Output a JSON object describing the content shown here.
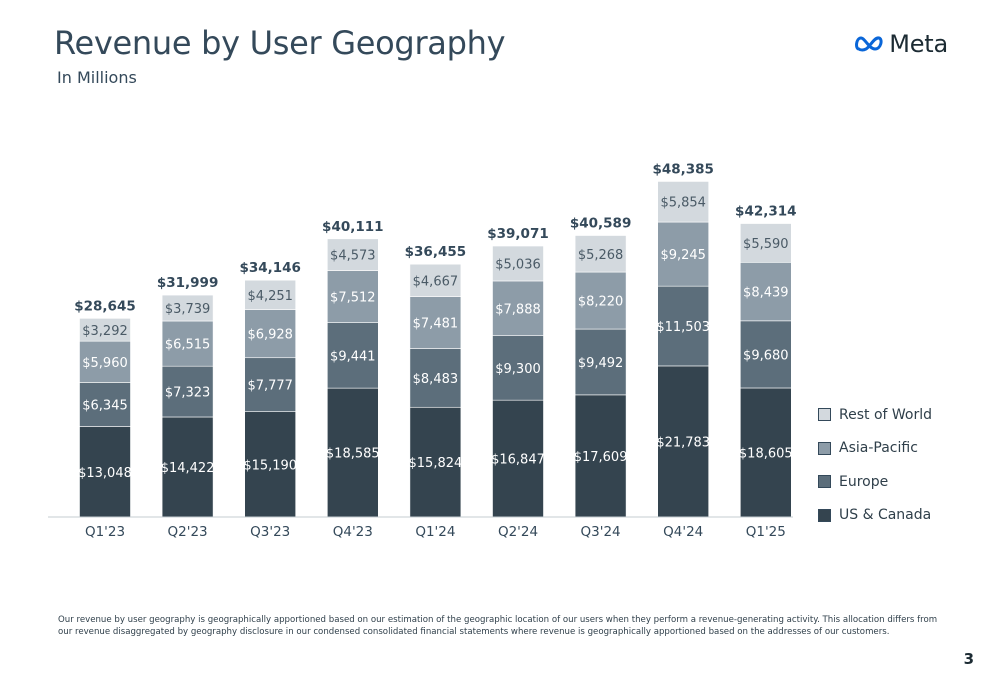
{
  "header": {
    "title": "Revenue by User Geography",
    "subtitle": "In Millions",
    "logo_text": "Meta"
  },
  "chart_data": {
    "type": "bar",
    "stacked": true,
    "title": "Revenue by User Geography",
    "subtitle": "In Millions",
    "categories": [
      "Q1'23",
      "Q2'23",
      "Q3'23",
      "Q4'23",
      "Q1'24",
      "Q2'24",
      "Q3'24",
      "Q4'24",
      "Q1'25"
    ],
    "series": [
      {
        "name": "US & Canada",
        "color": "#34444f",
        "label_color": "#ffffff",
        "values": [
          13048,
          14422,
          15190,
          18585,
          15824,
          16847,
          17609,
          21783,
          18605
        ]
      },
      {
        "name": "Europe",
        "color": "#5c6e7b",
        "label_color": "#ffffff",
        "values": [
          6345,
          7323,
          7777,
          9441,
          8483,
          9300,
          9492,
          11503,
          9680
        ]
      },
      {
        "name": "Asia-Pacific",
        "color": "#8d9ca8",
        "label_color": "#ffffff",
        "values": [
          5960,
          6515,
          6928,
          7512,
          7481,
          7888,
          8220,
          9245,
          8439
        ]
      },
      {
        "name": "Rest of World",
        "color": "#d3d9de",
        "label_color": "#4a5a66",
        "values": [
          3292,
          3739,
          4251,
          4573,
          4667,
          5036,
          5268,
          5854,
          5590
        ]
      }
    ],
    "totals": [
      28645,
      31999,
      34146,
      40111,
      36455,
      39071,
      40589,
      48385,
      42314
    ],
    "value_prefix": "$",
    "legend_placement": "right",
    "grid": false
  },
  "legend": {
    "items": [
      {
        "label": "Rest of World",
        "color": "#d3d9de"
      },
      {
        "label": "Asia-Pacific",
        "color": "#8d9ca8"
      },
      {
        "label": "Europe",
        "color": "#5c6e7b"
      },
      {
        "label": "US & Canada",
        "color": "#34444f"
      }
    ]
  },
  "footnote": "Our revenue by user geography is geographically apportioned based on our estimation of the geographic location of our users when they perform a revenue-generating activity. This allocation differs from our revenue disaggregated by geography disclosure in our condensed consolidated financial statements where revenue is geographically apportioned based on the addresses of our customers.",
  "page_number": "3"
}
